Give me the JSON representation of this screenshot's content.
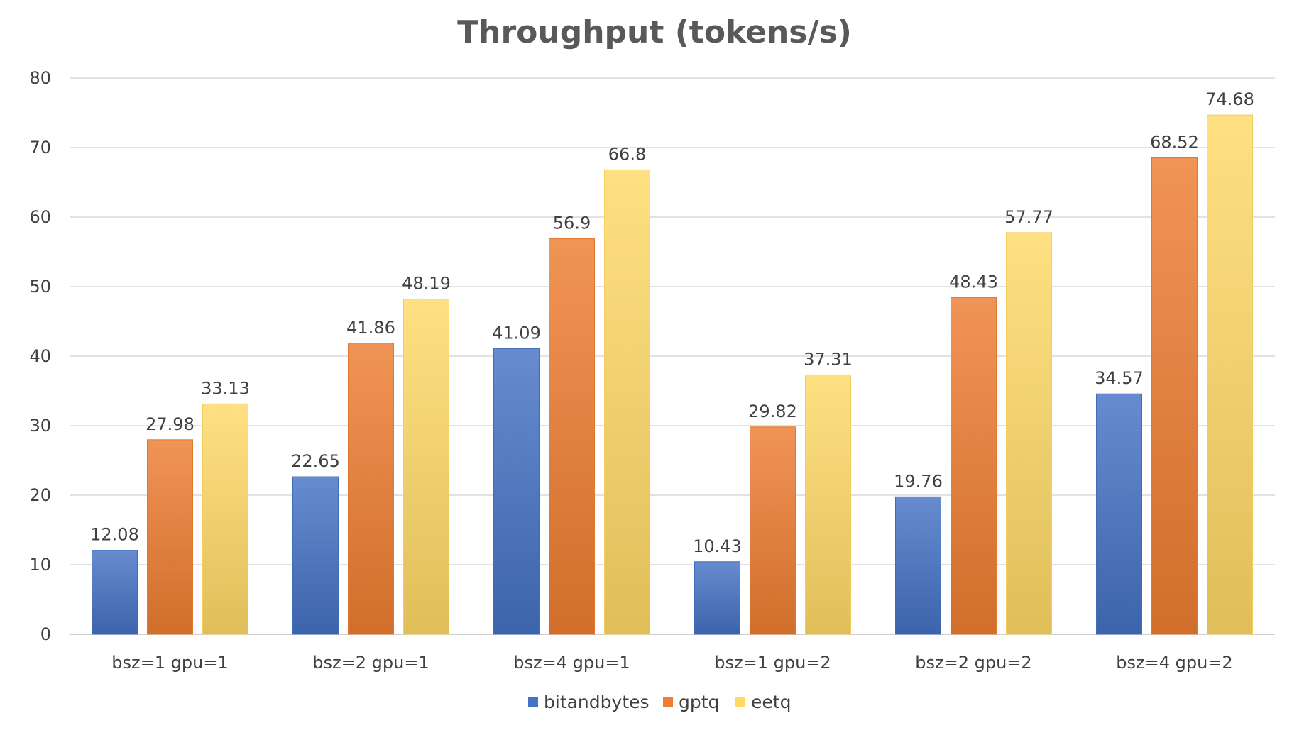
{
  "chart_data": {
    "type": "bar",
    "title": "Throughput (tokens/s)",
    "xlabel": "",
    "ylabel": "",
    "ylim": [
      0,
      80
    ],
    "yticks": [
      0,
      10,
      20,
      30,
      40,
      50,
      60,
      70,
      80
    ],
    "grid": true,
    "legend_position": "bottom",
    "categories": [
      "bsz=1 gpu=1",
      "bsz=2 gpu=1",
      "bsz=4 gpu=1",
      "bsz=1 gpu=2",
      "bsz=2 gpu=2",
      "bsz=4 gpu=2"
    ],
    "series": [
      {
        "name": "bitandbytes",
        "color": "#4472c4",
        "values": [
          12.08,
          22.65,
          41.09,
          10.43,
          19.76,
          34.57
        ]
      },
      {
        "name": "gptq",
        "color": "#ed7d31",
        "values": [
          27.98,
          41.86,
          56.9,
          29.82,
          48.43,
          68.52
        ]
      },
      {
        "name": "eetq",
        "color": "#ffd966",
        "values": [
          33.13,
          48.19,
          66.8,
          37.31,
          57.77,
          74.68
        ]
      }
    ],
    "data_labels": [
      [
        "12.08",
        "22.65",
        "41.09",
        "10.43",
        "19.76",
        "34.57"
      ],
      [
        "27.98",
        "41.86",
        "56.9",
        "29.82",
        "48.43",
        "68.52"
      ],
      [
        "33.13",
        "48.19",
        "66.8",
        "37.31",
        "57.77",
        "74.68"
      ]
    ]
  }
}
